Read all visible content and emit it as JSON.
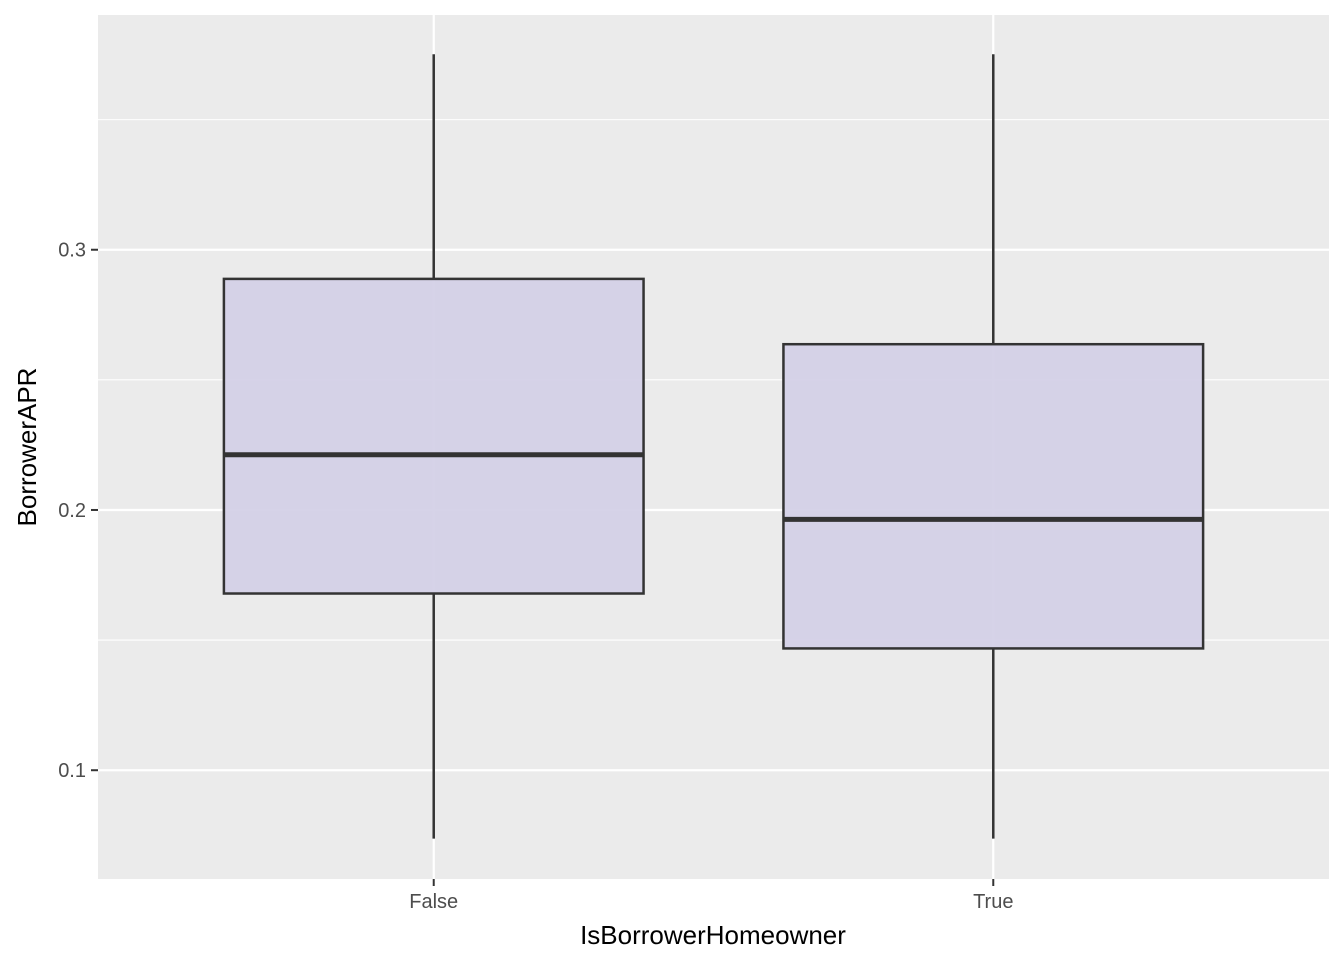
{
  "chart_data": {
    "type": "boxplot",
    "title": "",
    "xlabel": "IsBorrowerHomeowner",
    "ylabel": "BorrowerAPR",
    "categories": [
      "False",
      "True"
    ],
    "boxes": [
      {
        "category": "False",
        "whisker_low": 0.0737,
        "q1": 0.1679,
        "median": 0.2212,
        "q3": 0.2888,
        "whisker_high": 0.3751
      },
      {
        "category": "True",
        "whisker_low": 0.0737,
        "q1": 0.1468,
        "median": 0.1964,
        "q3": 0.2637,
        "whisker_high": 0.3751
      }
    ],
    "ylim": [
      0.0582,
      0.3902
    ],
    "yticks": [
      0.1,
      0.2,
      0.3
    ],
    "ytick_labels": [
      "0.1",
      "0.2",
      "0.3"
    ],
    "grid": true,
    "colors": {
      "panel_background": "#EBEBEB",
      "grid_major": "#FFFFFF",
      "box_fill": "#D3CFE6",
      "box_stroke": "#333333",
      "tick_text": "#4D4D4D"
    }
  }
}
